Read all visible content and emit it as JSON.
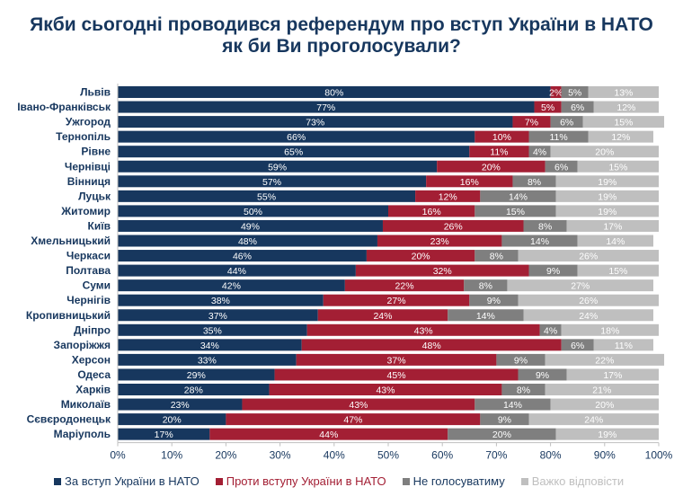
{
  "title_line1": "Якби сьогодні проводився референдум про вступ України в НАТО",
  "title_line2": "як би Ви проголосували?",
  "chart_data": {
    "type": "bar",
    "orientation": "horizontal",
    "stacked": true,
    "percent": true,
    "xlim": [
      0,
      100
    ],
    "x_ticks": [
      "0%",
      "10%",
      "20%",
      "30%",
      "40%",
      "50%",
      "60%",
      "70%",
      "80%",
      "90%",
      "100%"
    ],
    "grid": false,
    "legend_position": "bottom",
    "categories": [
      "Львів",
      "Івано-Франківськ",
      "Ужгород",
      "Тернопіль",
      "Рівне",
      "Чернівці",
      "Вінниця",
      "Луцьк",
      "Житомир",
      "Київ",
      "Хмельницький",
      "Черкаси",
      "Полтава",
      "Суми",
      "Чернігів",
      "Кропивницький",
      "Дніпро",
      "Запоріжжя",
      "Херсон",
      "Одеса",
      "Харків",
      "Миколаїв",
      "Сєвєродонецьк",
      "Маріуполь"
    ],
    "series": [
      {
        "name": "За вступ України в НАТО",
        "color": "#17375e",
        "text_color": "#ffffff",
        "values": [
          80,
          77,
          73,
          66,
          65,
          59,
          57,
          55,
          50,
          49,
          48,
          46,
          44,
          42,
          38,
          37,
          35,
          34,
          33,
          29,
          28,
          23,
          20,
          17
        ]
      },
      {
        "name": "Проти вступу України в НАТО",
        "color": "#a31f34",
        "text_color": "#ffffff",
        "values": [
          2,
          5,
          7,
          10,
          11,
          20,
          16,
          12,
          16,
          26,
          23,
          20,
          32,
          22,
          27,
          24,
          43,
          48,
          37,
          45,
          43,
          43,
          47,
          44
        ]
      },
      {
        "name": "Не голосуватиму",
        "color": "#7f7f7f",
        "text_color": "#ffffff",
        "values": [
          5,
          6,
          6,
          11,
          4,
          6,
          8,
          14,
          15,
          8,
          14,
          8,
          9,
          8,
          9,
          14,
          4,
          6,
          9,
          9,
          8,
          14,
          9,
          20
        ]
      },
      {
        "name": "Важко відповісти",
        "color": "#bfbfbf",
        "text_color": "#ffffff",
        "values": [
          13,
          12,
          15,
          12,
          20,
          15,
          19,
          19,
          19,
          17,
          14,
          26,
          15,
          27,
          26,
          24,
          18,
          11,
          22,
          17,
          21,
          20,
          24,
          19
        ]
      }
    ]
  }
}
